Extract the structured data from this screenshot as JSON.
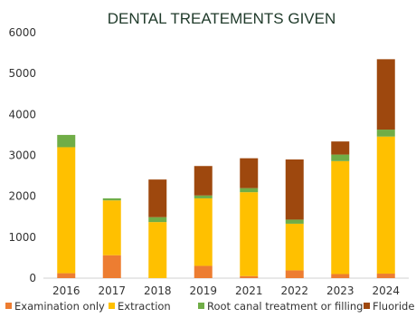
{
  "chart_data": {
    "type": "bar",
    "stacked": true,
    "title": "DENTAL TREATEMENTS GIVEN",
    "xlabel": "",
    "ylabel": "",
    "ylim": [
      0,
      6000
    ],
    "yticks": [
      0,
      1000,
      2000,
      3000,
      4000,
      5000,
      6000
    ],
    "grid": false,
    "legend_position": "bottom",
    "categories": [
      "2016",
      "2017",
      "2018",
      "2019",
      "2021",
      "2022",
      "2023",
      "2024"
    ],
    "series": [
      {
        "name": "Examination only",
        "color": "#ed7d31",
        "values": [
          120,
          560,
          0,
          300,
          50,
          190,
          100,
          110
        ]
      },
      {
        "name": "Extraction",
        "color": "#ffc000",
        "values": [
          3080,
          1340,
          1370,
          1650,
          2050,
          1140,
          2760,
          3350
        ]
      },
      {
        "name": "Root canal treatment or filling",
        "color": "#70ad47",
        "values": [
          300,
          50,
          120,
          70,
          100,
          100,
          160,
          170
        ]
      },
      {
        "name": "Fluoride",
        "color": "#9e480e",
        "values": [
          0,
          0,
          920,
          720,
          730,
          1470,
          320,
          1720
        ]
      }
    ]
  }
}
